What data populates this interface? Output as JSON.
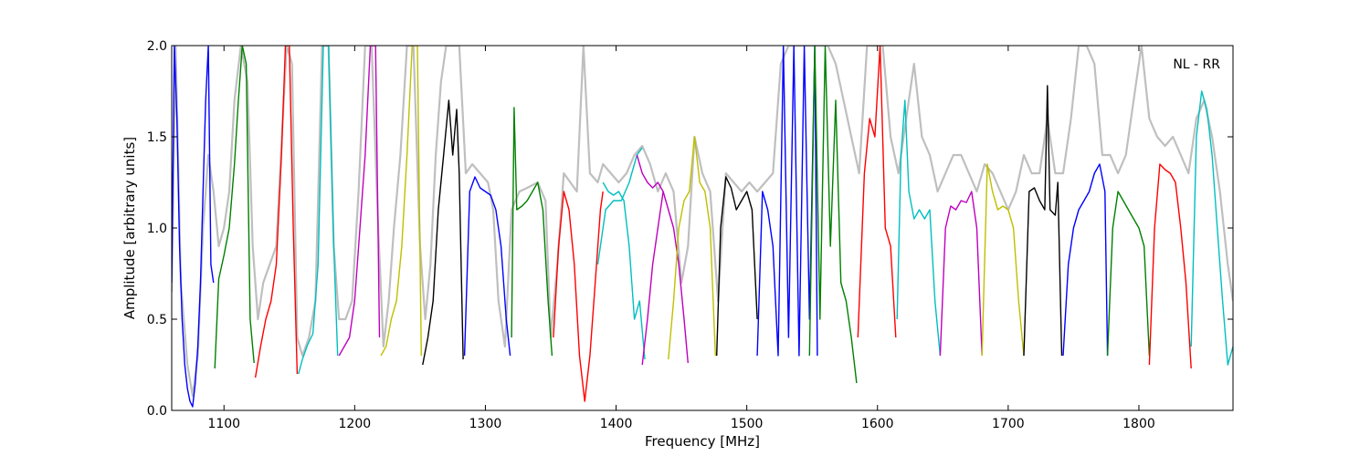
{
  "chart_data": {
    "type": "line",
    "title": "",
    "xlabel": "Frequency [MHz]",
    "ylabel": "Amplitude [arbitrary units]",
    "xlim": [
      1060,
      1872
    ],
    "ylim": [
      0.0,
      2.0
    ],
    "xticks": [
      "1100",
      "1200",
      "1300",
      "1400",
      "1500",
      "1600",
      "1700",
      "1800"
    ],
    "yticks": [
      "0.0",
      "0.5",
      "1.0",
      "1.5",
      "2.0"
    ],
    "grid": false,
    "annotation": "NL - RR",
    "colors": {
      "envelope": "#bfbfbf",
      "palette": [
        "#0000ff",
        "#008000",
        "#ff0000",
        "#00bfbf",
        "#bf00bf",
        "#bfbf00",
        "#000000"
      ]
    },
    "envelope": [
      [
        1060,
        0.65
      ],
      [
        1063,
        2.0
      ],
      [
        1067,
        0.7
      ],
      [
        1072,
        0.25
      ],
      [
        1076,
        0.08
      ],
      [
        1080,
        0.3
      ],
      [
        1084,
        1.0
      ],
      [
        1088,
        1.4
      ],
      [
        1092,
        1.2
      ],
      [
        1096,
        0.9
      ],
      [
        1100,
        1.0
      ],
      [
        1104,
        1.2
      ],
      [
        1108,
        1.7
      ],
      [
        1113,
        2.0
      ],
      [
        1118,
        1.8
      ],
      [
        1122,
        0.9
      ],
      [
        1126,
        0.5
      ],
      [
        1130,
        0.7
      ],
      [
        1135,
        0.8
      ],
      [
        1140,
        0.9
      ],
      [
        1145,
        1.6
      ],
      [
        1148,
        2.0
      ],
      [
        1152,
        1.9
      ],
      [
        1156,
        0.4
      ],
      [
        1160,
        0.3
      ],
      [
        1165,
        0.4
      ],
      [
        1170,
        0.6
      ],
      [
        1175,
        2.0
      ],
      [
        1180,
        2.0
      ],
      [
        1184,
        0.9
      ],
      [
        1188,
        0.5
      ],
      [
        1193,
        0.5
      ],
      [
        1198,
        0.6
      ],
      [
        1203,
        1.2
      ],
      [
        1208,
        2.0
      ],
      [
        1213,
        2.0
      ],
      [
        1218,
        1.0
      ],
      [
        1222,
        0.35
      ],
      [
        1226,
        0.6
      ],
      [
        1230,
        1.0
      ],
      [
        1235,
        1.4
      ],
      [
        1240,
        2.0
      ],
      [
        1245,
        2.0
      ],
      [
        1250,
        0.9
      ],
      [
        1254,
        0.5
      ],
      [
        1258,
        0.8
      ],
      [
        1262,
        1.4
      ],
      [
        1266,
        1.8
      ],
      [
        1270,
        2.0
      ],
      [
        1275,
        2.0
      ],
      [
        1280,
        2.0
      ],
      [
        1285,
        1.3
      ],
      [
        1290,
        1.35
      ],
      [
        1296,
        1.3
      ],
      [
        1302,
        1.25
      ],
      [
        1306,
        1.1
      ],
      [
        1310,
        0.6
      ],
      [
        1315,
        0.35
      ],
      [
        1320,
        1.1
      ],
      [
        1326,
        1.2
      ],
      [
        1332,
        1.22
      ],
      [
        1340,
        1.25
      ],
      [
        1346,
        1.15
      ],
      [
        1350,
        0.4
      ],
      [
        1355,
        0.8
      ],
      [
        1360,
        1.3
      ],
      [
        1365,
        1.25
      ],
      [
        1370,
        1.2
      ],
      [
        1375,
        2.0
      ],
      [
        1380,
        1.3
      ],
      [
        1386,
        1.25
      ],
      [
        1390,
        1.35
      ],
      [
        1396,
        1.3
      ],
      [
        1402,
        1.25
      ],
      [
        1408,
        1.3
      ],
      [
        1414,
        1.4
      ],
      [
        1420,
        1.45
      ],
      [
        1426,
        1.35
      ],
      [
        1432,
        1.2
      ],
      [
        1438,
        1.3
      ],
      [
        1444,
        1.2
      ],
      [
        1450,
        0.7
      ],
      [
        1455,
        0.9
      ],
      [
        1460,
        1.5
      ],
      [
        1466,
        1.3
      ],
      [
        1472,
        1.2
      ],
      [
        1478,
        0.6
      ],
      [
        1484,
        1.3
      ],
      [
        1490,
        1.25
      ],
      [
        1496,
        1.2
      ],
      [
        1502,
        1.25
      ],
      [
        1508,
        1.2
      ],
      [
        1514,
        1.25
      ],
      [
        1520,
        1.3
      ],
      [
        1526,
        1.9
      ],
      [
        1532,
        2.0
      ],
      [
        1538,
        2.0
      ],
      [
        1544,
        2.0
      ],
      [
        1550,
        2.0
      ],
      [
        1556,
        2.0
      ],
      [
        1562,
        2.0
      ],
      [
        1568,
        1.9
      ],
      [
        1574,
        1.7
      ],
      [
        1580,
        1.5
      ],
      [
        1586,
        1.3
      ],
      [
        1592,
        2.0
      ],
      [
        1598,
        2.0
      ],
      [
        1604,
        2.0
      ],
      [
        1610,
        1.5
      ],
      [
        1616,
        1.3
      ],
      [
        1622,
        1.6
      ],
      [
        1628,
        1.9
      ],
      [
        1634,
        1.5
      ],
      [
        1640,
        1.4
      ],
      [
        1646,
        1.2
      ],
      [
        1652,
        1.3
      ],
      [
        1658,
        1.4
      ],
      [
        1664,
        1.4
      ],
      [
        1670,
        1.3
      ],
      [
        1676,
        1.2
      ],
      [
        1682,
        1.35
      ],
      [
        1688,
        1.3
      ],
      [
        1694,
        1.2
      ],
      [
        1700,
        1.1
      ],
      [
        1706,
        1.2
      ],
      [
        1712,
        1.4
      ],
      [
        1718,
        1.3
      ],
      [
        1724,
        1.3
      ],
      [
        1730,
        1.6
      ],
      [
        1736,
        1.3
      ],
      [
        1742,
        1.3
      ],
      [
        1748,
        1.6
      ],
      [
        1754,
        2.0
      ],
      [
        1760,
        2.0
      ],
      [
        1766,
        1.9
      ],
      [
        1772,
        1.4
      ],
      [
        1778,
        1.4
      ],
      [
        1784,
        1.3
      ],
      [
        1790,
        1.4
      ],
      [
        1796,
        1.7
      ],
      [
        1802,
        2.0
      ],
      [
        1808,
        1.6
      ],
      [
        1814,
        1.5
      ],
      [
        1820,
        1.45
      ],
      [
        1826,
        1.5
      ],
      [
        1832,
        1.4
      ],
      [
        1838,
        1.3
      ],
      [
        1844,
        1.6
      ],
      [
        1850,
        1.7
      ],
      [
        1856,
        1.5
      ],
      [
        1862,
        1.2
      ],
      [
        1868,
        0.8
      ],
      [
        1872,
        0.6
      ]
    ],
    "series": [
      {
        "color": "#0000ff",
        "x": [
          1060,
          1062,
          1064,
          1066,
          1068,
          1070,
          1072,
          1074,
          1076,
          1078,
          1080,
          1082,
          1084,
          1086,
          1088,
          1090,
          1092
        ],
        "y": [
          0.7,
          2.0,
          1.6,
          0.9,
          0.5,
          0.25,
          0.12,
          0.05,
          0.02,
          0.15,
          0.35,
          0.7,
          1.2,
          1.7,
          2.0,
          0.8,
          0.7
        ]
      },
      {
        "color": "#008000",
        "x": [
          1093,
          1096,
          1100,
          1104,
          1108,
          1111,
          1114,
          1117,
          1120,
          1123
        ],
        "y": [
          0.23,
          0.72,
          0.85,
          1.0,
          1.35,
          1.7,
          2.0,
          1.9,
          0.5,
          0.26
        ]
      },
      {
        "color": "#ff0000",
        "x": [
          1124,
          1128,
          1132,
          1136,
          1140,
          1144,
          1147,
          1150,
          1153,
          1156
        ],
        "y": [
          0.18,
          0.35,
          0.5,
          0.6,
          0.8,
          1.4,
          2.0,
          2.0,
          1.0,
          0.2
        ]
      },
      {
        "color": "#00bfbf",
        "x": [
          1157,
          1160,
          1164,
          1168,
          1172,
          1176,
          1180,
          1184,
          1187
        ],
        "y": [
          0.2,
          0.28,
          0.36,
          0.42,
          0.8,
          2.0,
          2.0,
          0.9,
          0.3
        ]
      },
      {
        "color": "#bf00bf",
        "x": [
          1188,
          1192,
          1196,
          1200,
          1204,
          1208,
          1212,
          1216,
          1219
        ],
        "y": [
          0.3,
          0.35,
          0.4,
          0.6,
          1.0,
          1.4,
          2.0,
          2.0,
          0.4
        ]
      },
      {
        "color": "#bfbf00",
        "x": [
          1220,
          1224,
          1228,
          1232,
          1236,
          1240,
          1244,
          1248,
          1251
        ],
        "y": [
          0.3,
          0.35,
          0.5,
          0.6,
          0.9,
          1.4,
          2.0,
          2.0,
          0.3
        ]
      },
      {
        "color": "#000000",
        "x": [
          1252,
          1256,
          1260,
          1264,
          1268,
          1272,
          1275,
          1278,
          1280,
          1283
        ],
        "y": [
          0.25,
          0.4,
          0.6,
          1.1,
          1.4,
          1.7,
          1.4,
          1.65,
          1.3,
          0.28
        ]
      },
      {
        "color": "#0000ff",
        "x": [
          1284,
          1288,
          1292,
          1296,
          1300,
          1304,
          1308,
          1312,
          1316,
          1319
        ],
        "y": [
          0.3,
          1.2,
          1.28,
          1.22,
          1.2,
          1.18,
          1.1,
          0.9,
          0.5,
          0.3
        ]
      },
      {
        "color": "#008000",
        "x": [
          1320,
          1322,
          1324,
          1328,
          1332,
          1336,
          1340,
          1344,
          1348,
          1351
        ],
        "y": [
          0.4,
          1.66,
          1.1,
          1.12,
          1.15,
          1.2,
          1.25,
          1.1,
          0.6,
          0.3
        ]
      },
      {
        "color": "#ff0000",
        "x": [
          1352,
          1356,
          1360,
          1364,
          1368,
          1372,
          1376,
          1380,
          1384,
          1388,
          1390
        ],
        "y": [
          0.4,
          0.9,
          1.2,
          1.1,
          0.8,
          0.3,
          0.05,
          0.3,
          0.7,
          1.1,
          1.2
        ]
      },
      {
        "color": "#00bfbf",
        "x": [
          1390,
          1394,
          1398,
          1402,
          1406,
          1410,
          1414,
          1418,
          1422
        ],
        "y": [
          1.25,
          1.2,
          1.18,
          1.2,
          1.15,
          0.9,
          0.5,
          0.6,
          0.28
        ]
      },
      {
        "color": "#00bfbf",
        "x": [
          1386,
          1392,
          1398,
          1404,
          1410,
          1416,
          1420
        ],
        "y": [
          0.8,
          1.1,
          1.15,
          1.15,
          1.25,
          1.4,
          1.44
        ]
      },
      {
        "color": "#bf00bf",
        "x": [
          1416,
          1420,
          1424,
          1428,
          1432,
          1436,
          1440,
          1444,
          1448,
          1452,
          1455
        ],
        "y": [
          1.4,
          1.3,
          1.25,
          1.22,
          1.25,
          1.2,
          1.1,
          1.0,
          0.8,
          0.5,
          0.26
        ]
      },
      {
        "color": "#bf00bf",
        "x": [
          1420,
          1424,
          1428,
          1432,
          1436
        ],
        "y": [
          0.25,
          0.5,
          0.8,
          1.0,
          1.2
        ]
      },
      {
        "color": "#bfbf00",
        "x": [
          1440,
          1444,
          1448,
          1452,
          1456,
          1460,
          1464,
          1468,
          1472,
          1476
        ],
        "y": [
          0.28,
          0.6,
          1.0,
          1.15,
          1.2,
          1.5,
          1.25,
          1.2,
          1.0,
          0.3
        ]
      },
      {
        "color": "#000000",
        "x": [
          1477,
          1480,
          1484,
          1488,
          1492,
          1496,
          1500,
          1504,
          1508
        ],
        "y": [
          0.3,
          1.0,
          1.28,
          1.22,
          1.1,
          1.15,
          1.2,
          1.1,
          0.5
        ]
      },
      {
        "color": "#0000ff",
        "x": [
          1508,
          1512,
          1516,
          1520,
          1524,
          1528,
          1532,
          1536,
          1540,
          1544,
          1548,
          1552,
          1554
        ],
        "y": [
          0.3,
          1.2,
          1.1,
          0.9,
          0.3,
          2.0,
          0.4,
          2.0,
          0.3,
          2.0,
          0.5,
          2.0,
          0.3
        ]
      },
      {
        "color": "#008000",
        "x": [
          1548,
          1552,
          1556,
          1560,
          1564,
          1568,
          1572,
          1576,
          1580,
          1584
        ],
        "y": [
          0.3,
          2.0,
          0.5,
          2.0,
          0.9,
          1.7,
          0.7,
          0.6,
          0.4,
          0.15
        ]
      },
      {
        "color": "#ff0000",
        "x": [
          1585,
          1590,
          1594,
          1598,
          1602,
          1606,
          1610,
          1614
        ],
        "y": [
          0.4,
          1.3,
          1.6,
          1.5,
          2.0,
          1.0,
          0.9,
          0.4
        ]
      },
      {
        "color": "#00bfbf",
        "x": [
          1615,
          1618,
          1621,
          1624,
          1628,
          1632,
          1636,
          1640,
          1644,
          1648
        ],
        "y": [
          0.5,
          1.4,
          1.7,
          1.2,
          1.05,
          1.1,
          1.05,
          1.1,
          0.6,
          0.3
        ]
      },
      {
        "color": "#bf00bf",
        "x": [
          1648,
          1652,
          1656,
          1660,
          1664,
          1668,
          1672,
          1676,
          1680
        ],
        "y": [
          0.3,
          1.0,
          1.12,
          1.1,
          1.15,
          1.14,
          1.2,
          1.0,
          0.3
        ]
      },
      {
        "color": "#bfbf00",
        "x": [
          1680,
          1684,
          1688,
          1692,
          1696,
          1700,
          1704,
          1708,
          1712
        ],
        "y": [
          0.3,
          1.35,
          1.2,
          1.1,
          1.12,
          1.1,
          1.0,
          0.6,
          0.3
        ]
      },
      {
        "color": "#000000",
        "x": [
          1712,
          1716,
          1720,
          1724,
          1728,
          1730,
          1732,
          1736,
          1738,
          1741
        ],
        "y": [
          0.3,
          1.2,
          1.22,
          1.15,
          1.1,
          1.78,
          1.1,
          1.07,
          1.25,
          0.3
        ]
      },
      {
        "color": "#0000ff",
        "x": [
          1742,
          1746,
          1750,
          1754,
          1758,
          1762,
          1766,
          1770,
          1774,
          1776
        ],
        "y": [
          0.3,
          0.8,
          1.0,
          1.1,
          1.15,
          1.2,
          1.3,
          1.35,
          1.2,
          0.3
        ]
      },
      {
        "color": "#008000",
        "x": [
          1776,
          1780,
          1784,
          1788,
          1792,
          1796,
          1800,
          1804,
          1808
        ],
        "y": [
          0.3,
          1.0,
          1.2,
          1.15,
          1.1,
          1.05,
          1.0,
          0.9,
          0.3
        ]
      },
      {
        "color": "#ff0000",
        "x": [
          1808,
          1812,
          1816,
          1820,
          1824,
          1828,
          1832,
          1836,
          1840
        ],
        "y": [
          0.25,
          1.0,
          1.35,
          1.32,
          1.3,
          1.25,
          1.0,
          0.7,
          0.23
        ]
      },
      {
        "color": "#00bfbf",
        "x": [
          1840,
          1844,
          1848,
          1852,
          1856,
          1860,
          1864,
          1868,
          1872
        ],
        "y": [
          0.35,
          1.5,
          1.75,
          1.65,
          1.4,
          1.0,
          0.6,
          0.25,
          0.35
        ]
      }
    ]
  }
}
